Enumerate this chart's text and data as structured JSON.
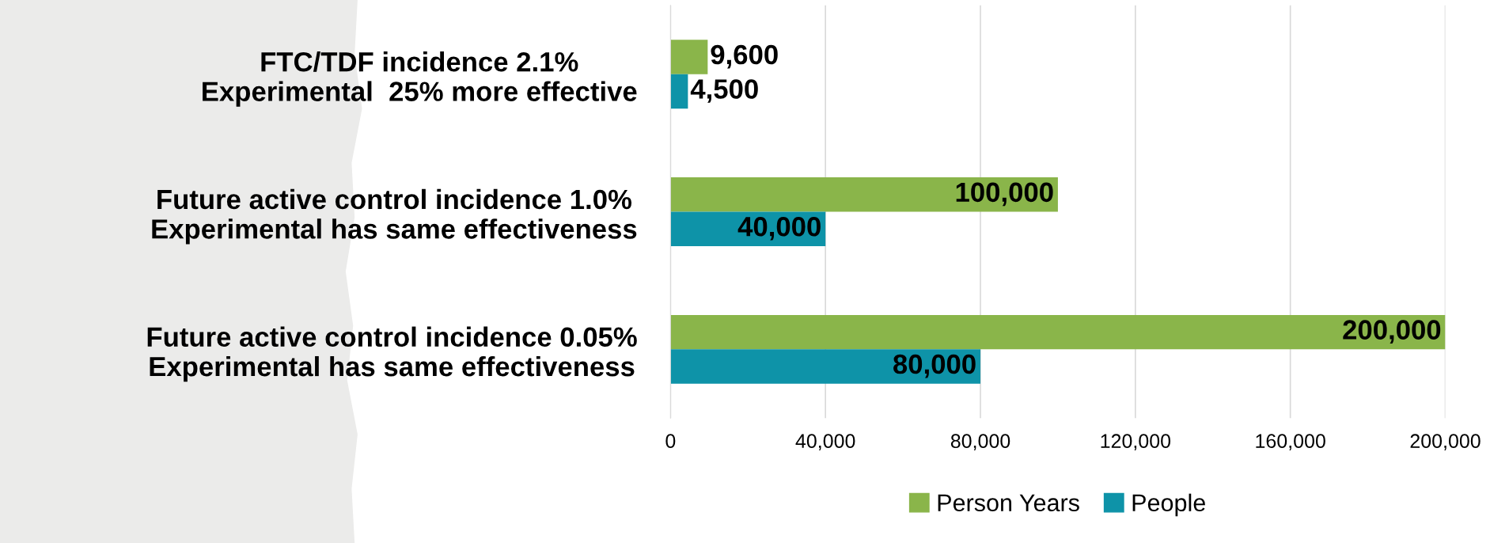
{
  "chart_data": {
    "type": "bar",
    "orientation": "horizontal",
    "categories": [
      "FTC/TDF incidence 2.1%\nExperimental  25% more effective",
      "Future active control incidence 1.0%\nExperimental has same effectiveness",
      "Future active control incidence 0.05%\nExperimental has same effectiveness"
    ],
    "series": [
      {
        "name": "Person Years",
        "color": "#8ab54a",
        "values": [
          9600,
          100000,
          200000
        ],
        "value_labels": [
          "9,600",
          "100,000",
          "200,000"
        ]
      },
      {
        "name": "People",
        "color": "#0e93a8",
        "values": [
          4500,
          40000,
          80000
        ],
        "value_labels": [
          "4,500",
          "40,000",
          "80,000"
        ]
      }
    ],
    "xlim": [
      0,
      200000
    ],
    "xticks": [
      {
        "value": 0,
        "label": "0"
      },
      {
        "value": 40000,
        "label": "40,000"
      },
      {
        "value": 80000,
        "label": "80,000"
      },
      {
        "value": 120000,
        "label": "120,000"
      },
      {
        "value": 160000,
        "label": "160,000"
      },
      {
        "value": 200000,
        "label": "200,000"
      }
    ],
    "grid": "x",
    "legend": "bottom"
  }
}
